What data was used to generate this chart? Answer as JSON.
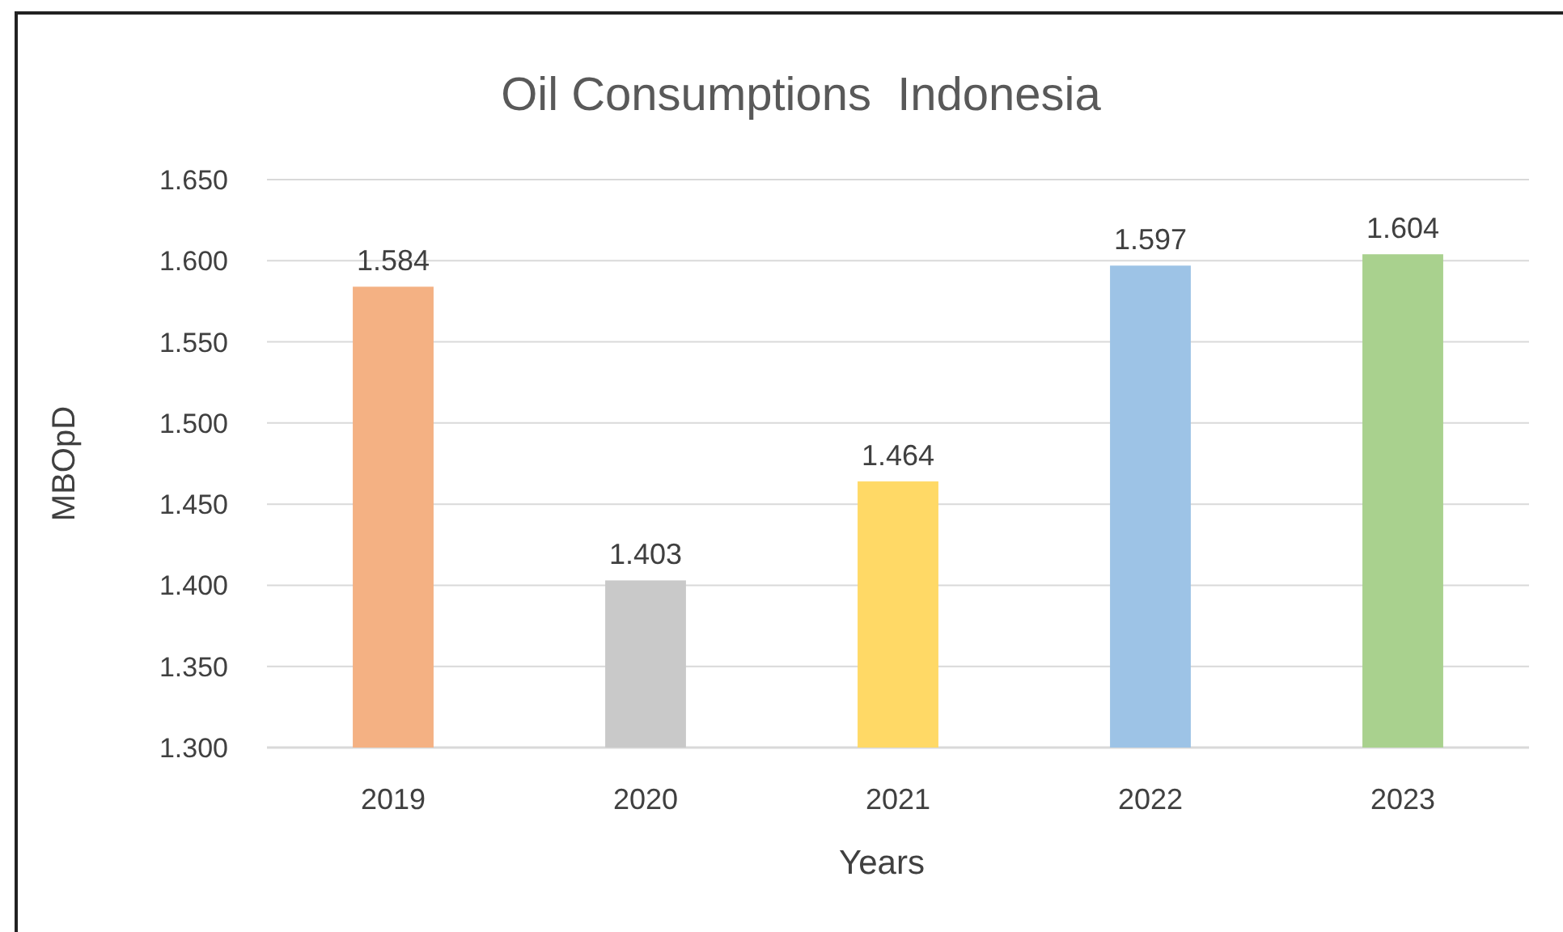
{
  "chart_data": {
    "type": "bar",
    "title": "Oil Consumptions  Indonesia",
    "xlabel": "Years",
    "ylabel": "MBOpD",
    "categories": [
      "2019",
      "2020",
      "2021",
      "2022",
      "2023"
    ],
    "values": [
      1.584,
      1.403,
      1.464,
      1.597,
      1.604
    ],
    "colors": [
      "#f4b183",
      "#c9c9c9",
      "#ffd966",
      "#9dc3e6",
      "#a9d18e"
    ],
    "ylim": [
      1.3,
      1.65
    ],
    "yticks": [
      {
        "value": 1.3,
        "label": "1.300"
      },
      {
        "value": 1.35,
        "label": "1.350"
      },
      {
        "value": 1.4,
        "label": "1.400"
      },
      {
        "value": 1.45,
        "label": "1.450"
      },
      {
        "value": 1.5,
        "label": "1.500"
      },
      {
        "value": 1.55,
        "label": "1.550"
      },
      {
        "value": 1.6,
        "label": "1.600"
      },
      {
        "value": 1.65,
        "label": "1.650"
      }
    ],
    "grid": "y",
    "data_labels": true
  }
}
